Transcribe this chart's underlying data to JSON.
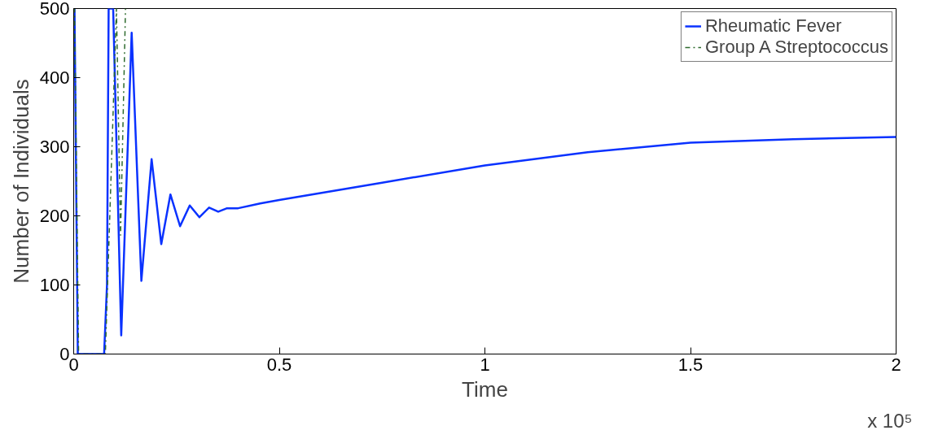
{
  "chart_data": {
    "type": "line",
    "xlabel": "Time",
    "ylabel": "Number of Individuals",
    "annotations": [
      "x 10⁵"
    ],
    "xlim": [
      0,
      2
    ],
    "ylim": [
      0,
      500
    ],
    "xticks": [
      0,
      0.5,
      1,
      1.5,
      2
    ],
    "yticks": [
      0,
      100,
      200,
      300,
      400,
      500
    ],
    "grid": false,
    "legend": "top right",
    "series": [
      {
        "name": "Rheumatic Fever",
        "color": "#0a32ff",
        "line_style": "solid",
        "x": [
          0,
          0.002,
          0.01,
          0.074,
          0.081,
          0.085,
          0.096,
          0.1156,
          0.141,
          0.1646,
          0.1895,
          0.213,
          0.2352,
          0.2587,
          0.2822,
          0.3058,
          0.3293,
          0.3515,
          0.373,
          0.4,
          0.4536,
          0.5,
          0.75,
          1.0,
          1.25,
          1.5,
          1.75,
          2.0
        ],
        "values": [
          500,
          500,
          0,
          0,
          100,
          500,
          500,
          27,
          465,
          106,
          282,
          159,
          231,
          185,
          215,
          198,
          212,
          206,
          211,
          211,
          218,
          223,
          248,
          273,
          292,
          306,
          311,
          314
        ]
      },
      {
        "name": "Group A Streptococcus",
        "color": "#2e6b2e",
        "line_style": "dashdot",
        "x": [
          0,
          0.002,
          0.012,
          0.074,
          0.077,
          0.104,
          0.114,
          0.126
        ],
        "values": [
          500,
          500,
          0,
          0,
          0,
          500,
          172,
          500
        ]
      }
    ]
  }
}
